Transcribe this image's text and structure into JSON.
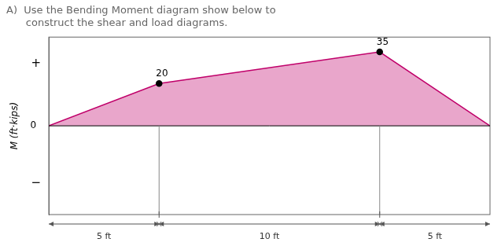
{
  "chart_data": {
    "type": "area",
    "title": [
      "A)  Use the Bending Moment diagram show below to",
      "      construct the shear and load diagrams."
    ],
    "y_label": "M (ft·kips)",
    "x": [
      0,
      5,
      15,
      20
    ],
    "values": [
      0,
      20,
      35,
      0
    ],
    "value_labels": [
      null,
      "20",
      "35",
      null
    ],
    "data_labels": true,
    "color": "#C0006A",
    "marker": "circle",
    "xlim": [
      0,
      20
    ],
    "ylim": [
      -42,
      42
    ],
    "yticks": [
      0
    ],
    "tick_labels": "y",
    "grid": false,
    "dividers": [
      5,
      15
    ],
    "annotations": [
      {
        "text": "+",
        "y": 29.4
      },
      {
        "text": "−",
        "y": -27.3
      },
      {
        "text": "5 ft",
        "x": 2.5
      },
      {
        "text": "10 ft",
        "x": 10
      },
      {
        "text": "5 ft",
        "x": 17.5
      }
    ]
  }
}
